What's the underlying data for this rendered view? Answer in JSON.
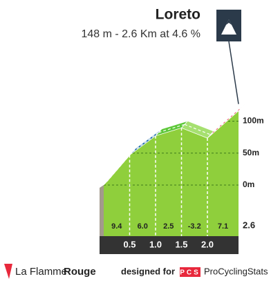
{
  "chart_data": {
    "type": "climb",
    "title": "Loreto",
    "subtitle": "148 m - 2.6 Km at 4.6 %",
    "values": [
      9.4,
      6,
      2.5,
      -3.2,
      7.1
    ],
    "value_labels": [
      "9.4",
      "6.0",
      "2.5",
      "-3.2",
      "7.1"
    ],
    "colors": [
      "#1a1a1a",
      "#1f6fa8",
      "#5ec83a",
      "#a6e070",
      "#e8283c"
    ],
    "xlim": [
      0,
      2.6
    ],
    "xticks": [
      0.5,
      {
        "value": 1,
        "label": "1.0"
      },
      1.5,
      {
        "value": 2,
        "label": "2.0"
      }
    ],
    "ylim": [
      -80,
      160
    ],
    "yticks": [
      {
        "value": 0,
        "label": "0m"
      },
      {
        "value": 50,
        "label": "50m"
      },
      {
        "value": 100,
        "label": "100m"
      }
    ],
    "grid": true
  },
  "footer": {
    "brand_a": "La Flamme",
    "brand_b": "Rouge",
    "designed": "designed for",
    "logo": "PCS",
    "site": "ProCyclingStats"
  }
}
